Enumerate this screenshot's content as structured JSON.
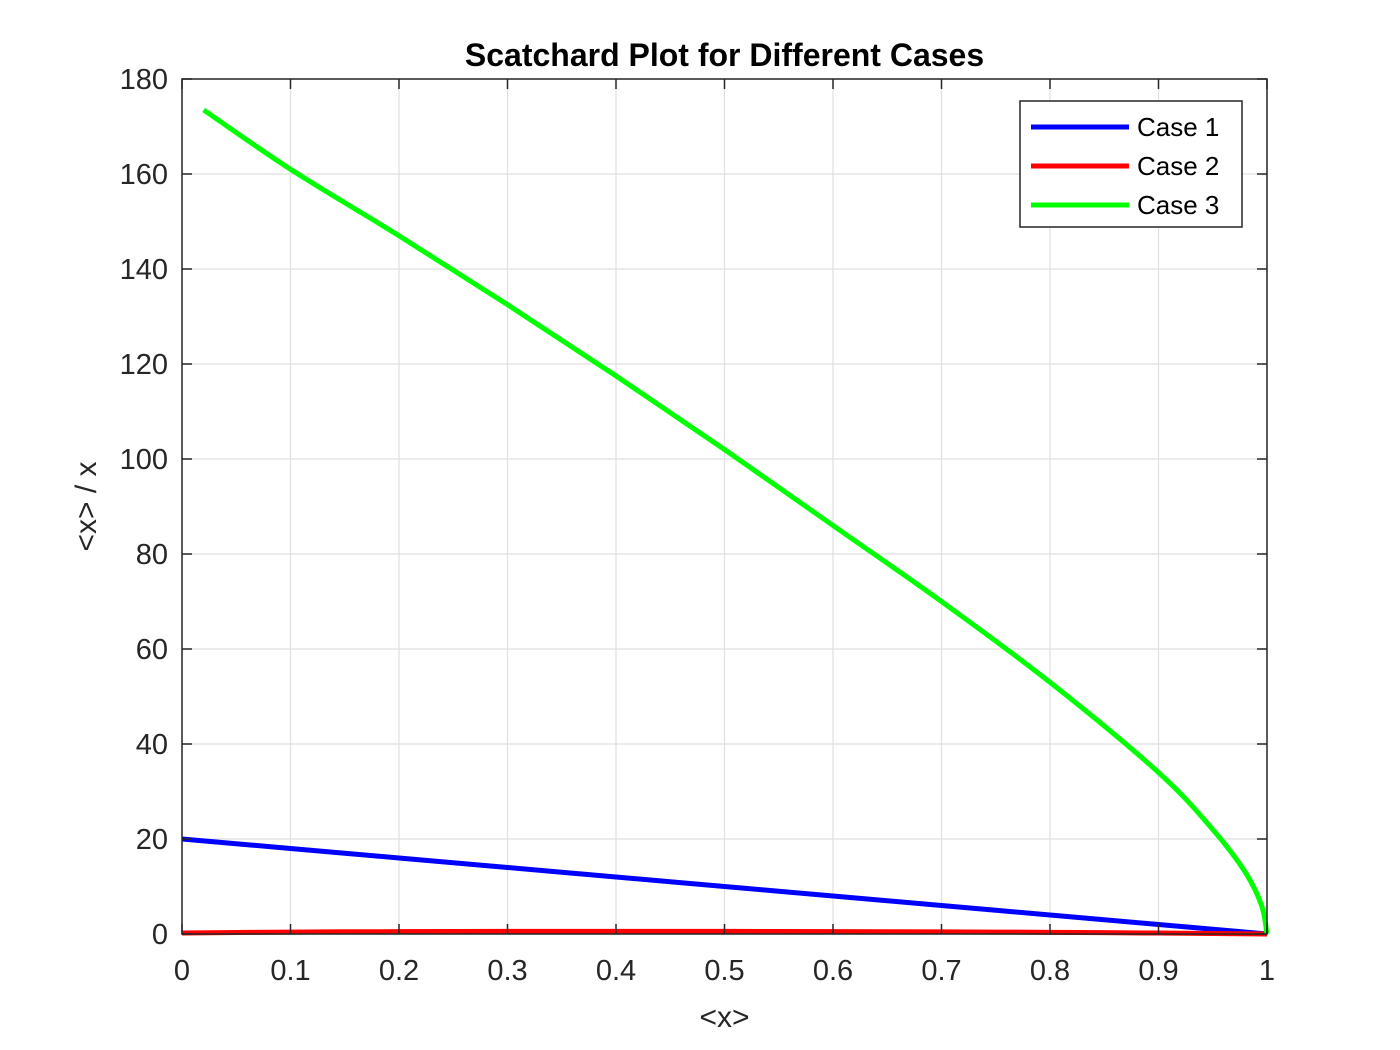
{
  "chart_data": {
    "type": "line",
    "title": "Scatchard Plot for Different Cases",
    "xlabel": "<x>",
    "ylabel": "<x> / x",
    "xlim": [
      0,
      1
    ],
    "ylim": [
      0,
      180
    ],
    "xticks": [
      "0",
      "0.1",
      "0.2",
      "0.3",
      "0.4",
      "0.5",
      "0.6",
      "0.7",
      "0.8",
      "0.9",
      "1"
    ],
    "yticks": [
      "0",
      "20",
      "40",
      "60",
      "80",
      "100",
      "120",
      "140",
      "160",
      "180"
    ],
    "grid": true,
    "legend": "top-right",
    "series": [
      {
        "name": "Case 1",
        "color": "#0000ff",
        "x": [
          0,
          0.1,
          0.2,
          0.3,
          0.4,
          0.5,
          0.6,
          0.7,
          0.8,
          0.9,
          1.0
        ],
        "y": [
          20,
          18,
          16,
          14,
          12,
          10,
          8,
          6,
          4,
          2,
          0
        ]
      },
      {
        "name": "Case 2",
        "color": "#ff0000",
        "x": [
          0,
          0.1,
          0.2,
          0.3,
          0.4,
          0.5,
          0.6,
          0.7,
          0.8,
          0.9,
          1.0
        ],
        "y": [
          0.2,
          0.4,
          0.5,
          0.55,
          0.55,
          0.55,
          0.5,
          0.45,
          0.35,
          0.2,
          0
        ]
      },
      {
        "name": "Case 3",
        "color": "#00ff00",
        "x": [
          0.02,
          0.1,
          0.2,
          0.3,
          0.4,
          0.5,
          0.6,
          0.7,
          0.8,
          0.9,
          0.95,
          0.98,
          0.995,
          1.0
        ],
        "y": [
          173.5,
          161,
          147,
          132.5,
          117.5,
          102,
          86,
          70,
          53,
          34,
          22,
          13,
          6,
          0
        ]
      }
    ]
  }
}
